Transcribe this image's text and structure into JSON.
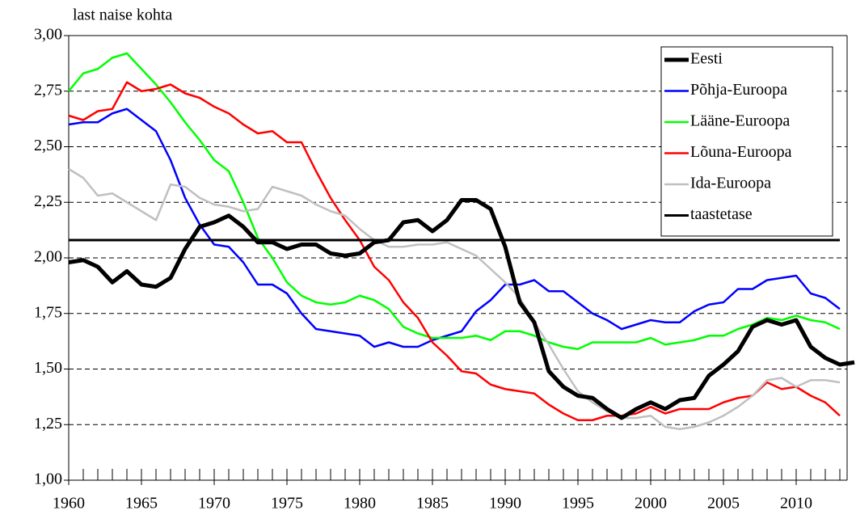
{
  "chart_data": {
    "type": "line",
    "y_label": "last naise kohta",
    "x": [
      1960,
      1961,
      1962,
      1963,
      1964,
      1965,
      1966,
      1967,
      1968,
      1969,
      1970,
      1971,
      1972,
      1973,
      1974,
      1975,
      1976,
      1977,
      1978,
      1979,
      1980,
      1981,
      1982,
      1983,
      1984,
      1985,
      1986,
      1987,
      1988,
      1989,
      1990,
      1991,
      1992,
      1993,
      1994,
      1995,
      1996,
      1997,
      1998,
      1999,
      2000,
      2001,
      2002,
      2003,
      2004,
      2005,
      2006,
      2007,
      2008,
      2009,
      2010,
      2011,
      2012,
      2013,
      2014
    ],
    "series": [
      {
        "name": "Eesti",
        "color": "#000000",
        "width": 5,
        "values": [
          1.98,
          1.99,
          1.96,
          1.89,
          1.94,
          1.88,
          1.87,
          1.91,
          2.04,
          2.14,
          2.16,
          2.19,
          2.14,
          2.07,
          2.07,
          2.04,
          2.06,
          2.06,
          2.02,
          2.01,
          2.02,
          2.07,
          2.08,
          2.16,
          2.17,
          2.12,
          2.17,
          2.26,
          2.26,
          2.22,
          2.05,
          1.8,
          1.71,
          1.49,
          1.42,
          1.38,
          1.37,
          1.32,
          1.28,
          1.32,
          1.35,
          1.32,
          1.36,
          1.37,
          1.47,
          1.52,
          1.58,
          1.69,
          1.72,
          1.7,
          1.72,
          1.6,
          1.55,
          1.52,
          1.53
        ]
      },
      {
        "name": "Põhja-Euroopa",
        "color": "#0000ff",
        "width": 2.5,
        "values": [
          2.6,
          2.61,
          2.61,
          2.65,
          2.67,
          2.62,
          2.57,
          2.44,
          2.27,
          2.15,
          2.06,
          2.05,
          1.98,
          1.88,
          1.88,
          1.84,
          1.75,
          1.68,
          1.67,
          1.66,
          1.65,
          1.6,
          1.62,
          1.6,
          1.6,
          1.63,
          1.65,
          1.67,
          1.76,
          1.81,
          1.88,
          1.88,
          1.9,
          1.85,
          1.85,
          1.8,
          1.75,
          1.72,
          1.68,
          1.7,
          1.72,
          1.71,
          1.71,
          1.76,
          1.79,
          1.8,
          1.86,
          1.86,
          1.9,
          1.91,
          1.92,
          1.84,
          1.82,
          1.77,
          null
        ]
      },
      {
        "name": "Lääne-Euroopa",
        "color": "#00ff00",
        "width": 2.5,
        "values": [
          2.75,
          2.83,
          2.85,
          2.9,
          2.92,
          2.85,
          2.78,
          2.7,
          2.61,
          2.53,
          2.44,
          2.39,
          2.25,
          2.09,
          2.0,
          1.89,
          1.83,
          1.8,
          1.79,
          1.8,
          1.83,
          1.81,
          1.77,
          1.69,
          1.66,
          1.64,
          1.64,
          1.64,
          1.65,
          1.63,
          1.67,
          1.67,
          1.65,
          1.62,
          1.6,
          1.59,
          1.62,
          1.62,
          1.62,
          1.62,
          1.64,
          1.61,
          1.62,
          1.63,
          1.65,
          1.65,
          1.68,
          1.7,
          1.73,
          1.72,
          1.74,
          1.72,
          1.71,
          1.68,
          null
        ]
      },
      {
        "name": "Lõuna-Euroopa",
        "color": "#ff0000",
        "width": 2.5,
        "values": [
          2.64,
          2.62,
          2.66,
          2.67,
          2.79,
          2.75,
          2.76,
          2.78,
          2.74,
          2.72,
          2.68,
          2.65,
          2.6,
          2.56,
          2.57,
          2.52,
          2.52,
          2.39,
          2.27,
          2.17,
          2.08,
          1.96,
          1.9,
          1.8,
          1.73,
          1.62,
          1.56,
          1.49,
          1.48,
          1.43,
          1.41,
          1.4,
          1.39,
          1.34,
          1.3,
          1.27,
          1.27,
          1.29,
          1.29,
          1.3,
          1.33,
          1.3,
          1.32,
          1.32,
          1.32,
          1.35,
          1.37,
          1.38,
          1.44,
          1.41,
          1.42,
          1.38,
          1.35,
          1.29,
          null
        ]
      },
      {
        "name": "Ida-Euroopa",
        "color": "#c0c0c0",
        "width": 2.5,
        "values": [
          2.4,
          2.36,
          2.28,
          2.29,
          2.25,
          2.21,
          2.17,
          2.33,
          2.32,
          2.27,
          2.24,
          2.23,
          2.21,
          2.22,
          2.32,
          2.3,
          2.28,
          2.24,
          2.21,
          2.19,
          2.13,
          2.08,
          2.05,
          2.05,
          2.06,
          2.06,
          2.07,
          2.04,
          2.01,
          1.95,
          1.89,
          1.82,
          1.71,
          1.61,
          1.5,
          1.4,
          1.35,
          1.31,
          1.28,
          1.28,
          1.29,
          1.24,
          1.23,
          1.24,
          1.26,
          1.29,
          1.33,
          1.38,
          1.45,
          1.46,
          1.42,
          1.45,
          1.45,
          1.44,
          null
        ]
      },
      {
        "name": "taastetase",
        "color": "#000000",
        "width": 3,
        "values": [
          2.08,
          2.08,
          2.08,
          2.08,
          2.08,
          2.08,
          2.08,
          2.08,
          2.08,
          2.08,
          2.08,
          2.08,
          2.08,
          2.08,
          2.08,
          2.08,
          2.08,
          2.08,
          2.08,
          2.08,
          2.08,
          2.08,
          2.08,
          2.08,
          2.08,
          2.08,
          2.08,
          2.08,
          2.08,
          2.08,
          2.08,
          2.08,
          2.08,
          2.08,
          2.08,
          2.08,
          2.08,
          2.08,
          2.08,
          2.08,
          2.08,
          2.08,
          2.08,
          2.08,
          2.08,
          2.08,
          2.08,
          2.08,
          2.08,
          2.08,
          2.08,
          2.08,
          2.08,
          2.08,
          null
        ]
      }
    ],
    "xlim": [
      1960,
      2013.5
    ],
    "xticks": [
      1960,
      1965,
      1970,
      1975,
      1980,
      1985,
      1990,
      1995,
      2000,
      2005,
      2010
    ],
    "xminorticks": [
      1960,
      1961,
      1962,
      1963,
      1964,
      1965,
      1966,
      1967,
      1968,
      1969,
      1970,
      1971,
      1972,
      1973,
      1974,
      1975,
      1976,
      1977,
      1978,
      1979,
      1980,
      1981,
      1982,
      1983,
      1984,
      1985,
      1986,
      1987,
      1988,
      1989,
      1990,
      1991,
      1992,
      1993,
      1994,
      1995,
      1996,
      1997,
      1998,
      1999,
      2000,
      2001,
      2002,
      2003,
      2004,
      2005,
      2006,
      2007,
      2008,
      2009,
      2010,
      2011,
      2012,
      2013
    ],
    "ylim": [
      1,
      3
    ],
    "yticks": [
      {
        "value": 1,
        "label": "1,00"
      },
      {
        "value": 1.25,
        "label": "1,25"
      },
      {
        "value": 1.5,
        "label": "1,50"
      },
      {
        "value": 1.75,
        "label": "1,75"
      },
      {
        "value": 2,
        "label": "2,00"
      },
      {
        "value": 2.25,
        "label": "2,25"
      },
      {
        "value": 2.5,
        "label": "2,50"
      },
      {
        "value": 2.75,
        "label": "2,75"
      },
      {
        "value": 3,
        "label": "3,00"
      }
    ],
    "grid": true,
    "legend": "top-right"
  }
}
